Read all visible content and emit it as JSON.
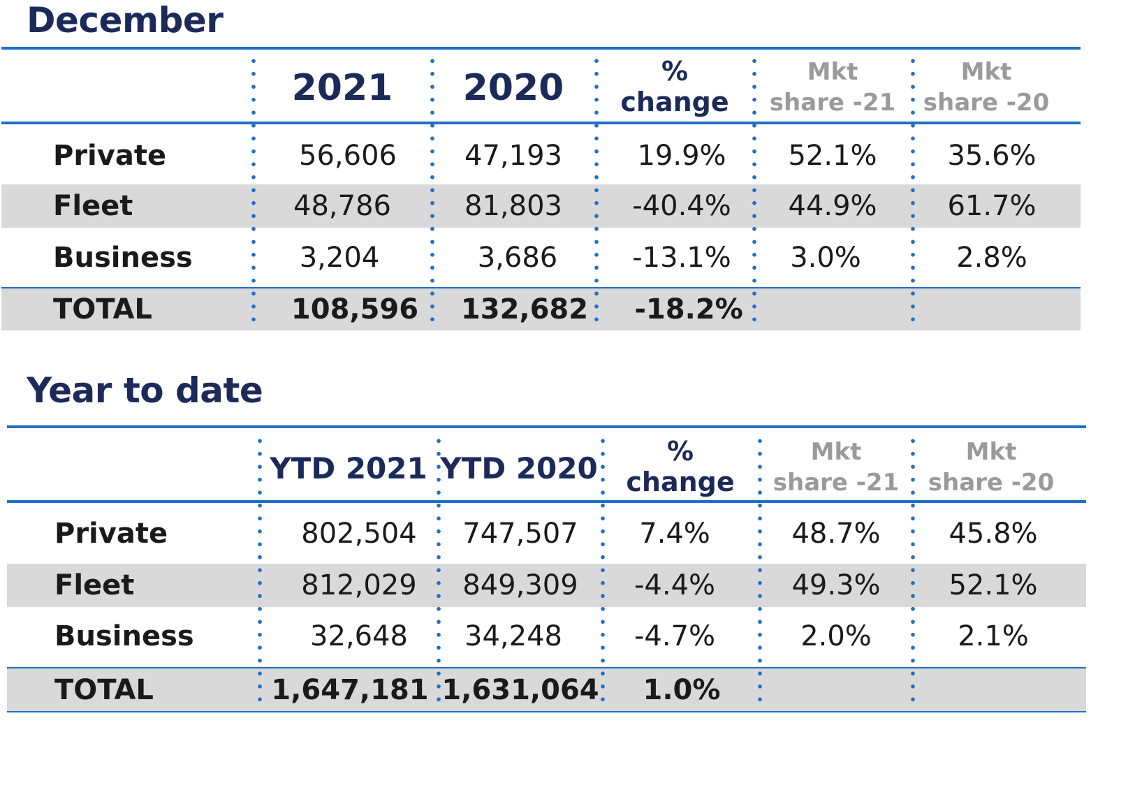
{
  "december": {
    "title": "December",
    "headers": {
      "col1": "2021",
      "col2": "2020",
      "pct_line1": "%",
      "pct_line2": "change",
      "mkt21_line1": "Mkt",
      "mkt21_line2": "share -21",
      "mkt20_line1": "Mkt",
      "mkt20_line2": "share -20"
    },
    "rows": [
      {
        "label": "Private",
        "v2021": "56,606",
        "v2020": "47,193",
        "pct": "19.9%",
        "mkt21": "52.1%",
        "mkt20": "35.6%"
      },
      {
        "label": "Fleet",
        "v2021": "48,786",
        "v2020": "81,803",
        "pct": "-40.4%",
        "mkt21": "44.9%",
        "mkt20": "61.7%"
      },
      {
        "label": "Business",
        "v2021": "3,204",
        "v2020": "3,686",
        "pct": "-13.1%",
        "mkt21": "3.0%",
        "mkt20": "2.8%"
      }
    ],
    "total": {
      "label": "TOTAL",
      "v2021": "108,596",
      "v2020": "132,682",
      "pct": "-18.2%"
    }
  },
  "ytd": {
    "title": "Year to date",
    "headers": {
      "col1": "YTD 2021",
      "col2": "YTD 2020",
      "pct_line1": "%",
      "pct_line2": "change",
      "mkt21_line1": "Mkt",
      "mkt21_line2": "share -21",
      "mkt20_line1": "Mkt",
      "mkt20_line2": "share -20"
    },
    "rows": [
      {
        "label": "Private",
        "v2021": "802,504",
        "v2020": "747,507",
        "pct": "7.4%",
        "mkt21": "48.7%",
        "mkt20": "45.8%"
      },
      {
        "label": "Fleet",
        "v2021": "812,029",
        "v2020": "849,309",
        "pct": "-4.4%",
        "mkt21": "49.3%",
        "mkt20": "52.1%"
      },
      {
        "label": "Business",
        "v2021": "32,648",
        "v2020": "34,248",
        "pct": "-4.7%",
        "mkt21": "2.0%",
        "mkt20": "2.1%"
      }
    ],
    "total": {
      "label": "TOTAL",
      "v2021": "1,647,181",
      "v2020": "1,631,064",
      "pct": "1.0%"
    }
  },
  "colors": {
    "accent_blue": "#1e6fc8",
    "title_navy": "#1c2a5a",
    "band_grey": "#d9d9d9",
    "muted_grey": "#9a9a9a"
  }
}
